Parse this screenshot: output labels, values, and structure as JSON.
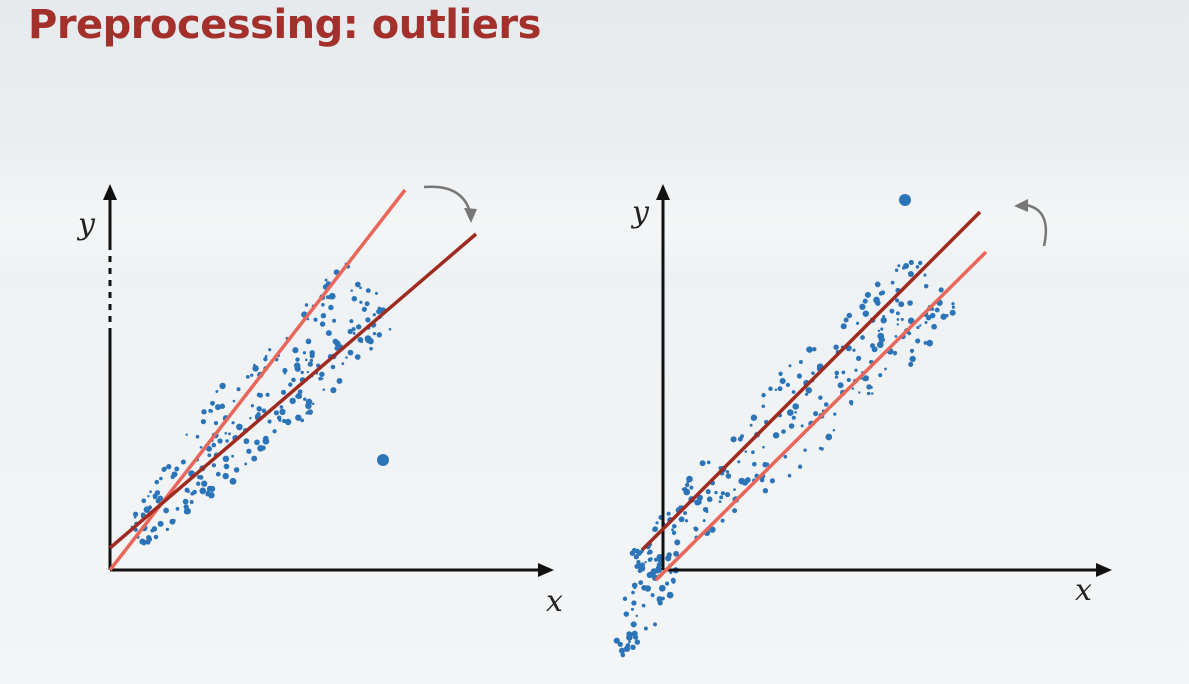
{
  "slide": {
    "title": "Preprocessing: outliers"
  },
  "panels": [
    {
      "x_label": "x",
      "y_label": "y",
      "arrow": "clockwise",
      "lines": [
        "light-red",
        "dark-red"
      ],
      "outlier": "below-cluster"
    },
    {
      "x_label": "x",
      "y_label": "y",
      "arrow": "counter-clockwise",
      "lines": [
        "dark-red",
        "light-red"
      ],
      "outlier": "above-cluster"
    }
  ],
  "colors": {
    "title": "#a3302b",
    "dark_line": "#9e2a20",
    "light_line": "#e8675a",
    "points": "#2c74b8",
    "axes": "#111111",
    "arrow": "#777777"
  }
}
